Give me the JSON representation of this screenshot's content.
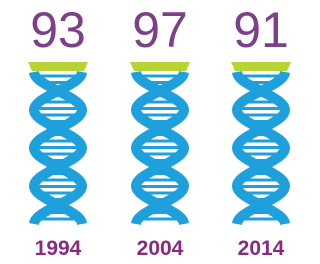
{
  "chart_data": {
    "type": "pictograph",
    "categories": [
      "1994",
      "2004",
      "2014"
    ],
    "values": [
      93,
      97,
      91
    ],
    "color": "#1ea0dc"
  }
}
